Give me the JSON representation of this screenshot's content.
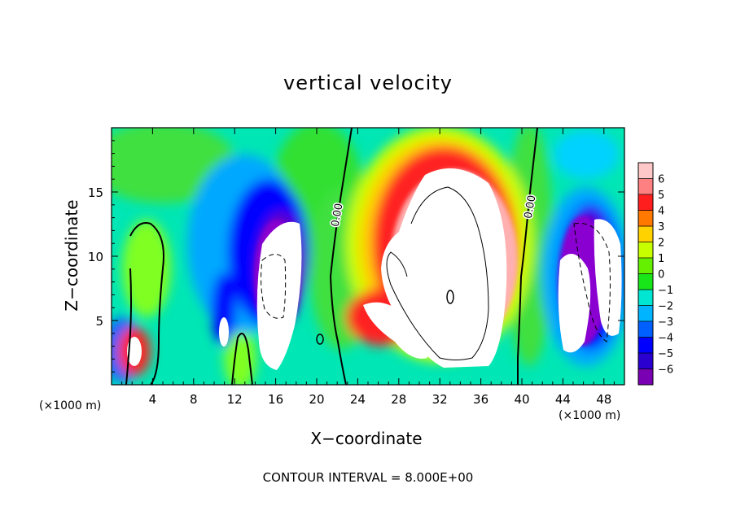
{
  "title": "vertical velocity",
  "footer_note": "CONTOUR INTERVAL = 8.000E+00",
  "chart_data": {
    "type": "heatmap",
    "title": "vertical velocity",
    "xlabel": "X−coordinate",
    "ylabel": "Z−coordinate",
    "x_unit_label": "(×1000 m)",
    "xlim": [
      0,
      50
    ],
    "ylim": [
      0,
      20
    ],
    "x_ticks": [
      4,
      8,
      12,
      16,
      20,
      24,
      28,
      32,
      36,
      40,
      44,
      48
    ],
    "x_tick_labels": [
      "4",
      "8",
      "12",
      "16",
      "20",
      "24",
      "28",
      "32",
      "36",
      "40",
      "44",
      "48"
    ],
    "y_ticks": [
      5,
      10,
      15
    ],
    "y_tick_labels": [
      "5",
      "10",
      "15"
    ],
    "colorbar": {
      "values": [
        -6,
        -5,
        -4,
        -3,
        -2,
        -1,
        0,
        1,
        2,
        3,
        4,
        5,
        6
      ],
      "tick_labels": [
        "−6",
        "−5",
        "−4",
        "−3",
        "−2",
        "−1",
        "0",
        "1",
        "2",
        "3",
        "4",
        "5",
        "6"
      ],
      "colors": [
        "#7a00b4",
        "#2a00d0",
        "#0000ff",
        "#005fff",
        "#00b4ff",
        "#00e6d2",
        "#19e619",
        "#64f000",
        "#c8ff00",
        "#ffd200",
        "#ff7800",
        "#ff1e1e",
        "#ff8080",
        "#ffc8c8"
      ]
    },
    "contour_labels": [
      "0.00",
      "0.00"
    ],
    "contour_interval": 8.0,
    "features": [
      {
        "kind": "updraft",
        "x_center": 32.5,
        "z_center": 9,
        "peak": 8
      },
      {
        "kind": "updraft",
        "x_center": 26,
        "z_center": 5.5,
        "peak": 8
      },
      {
        "kind": "updraft",
        "x_center": 2.5,
        "z_center": 2,
        "peak": 6
      },
      {
        "kind": "downdraft",
        "x_center": 16,
        "z_center": 6.5,
        "peak": -12
      },
      {
        "kind": "downdraft",
        "x_center": 46,
        "z_center": 6.5,
        "peak": -10
      }
    ]
  }
}
